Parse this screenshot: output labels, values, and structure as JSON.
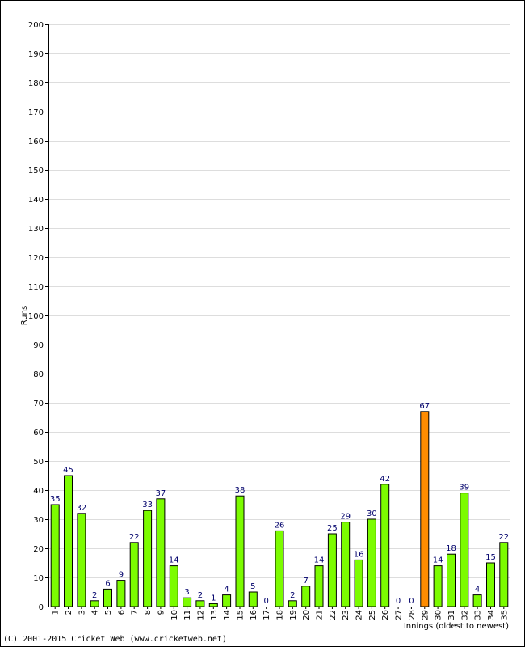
{
  "chart_data": {
    "type": "bar",
    "title": "",
    "xlabel": "Innings (oldest to newest)",
    "ylabel": "Runs",
    "ylim": [
      0,
      200
    ],
    "ytick_step": 10,
    "grid": true,
    "categories": [
      "1",
      "2",
      "3",
      "4",
      "5",
      "6",
      "7",
      "8",
      "9",
      "10",
      "11",
      "12",
      "13",
      "14",
      "15",
      "16",
      "17",
      "18",
      "19",
      "20",
      "21",
      "22",
      "23",
      "24",
      "25",
      "26",
      "27",
      "28",
      "29",
      "30",
      "31",
      "32",
      "33",
      "34",
      "35"
    ],
    "values": [
      35,
      45,
      32,
      2,
      6,
      9,
      22,
      33,
      37,
      14,
      3,
      2,
      1,
      4,
      38,
      5,
      0,
      26,
      2,
      7,
      14,
      25,
      29,
      16,
      30,
      42,
      0,
      0,
      67,
      14,
      18,
      39,
      4,
      15,
      22
    ],
    "highlight_index": 28,
    "colors": {
      "bar": "#7cfc00",
      "bar_highlight": "#ff8c00",
      "bar_border": "#000000",
      "value_label": "#00006b",
      "grid": "#dddddd"
    }
  },
  "footer": {
    "copyright": "(C) 2001-2015 Cricket Web (www.cricketweb.net)"
  }
}
